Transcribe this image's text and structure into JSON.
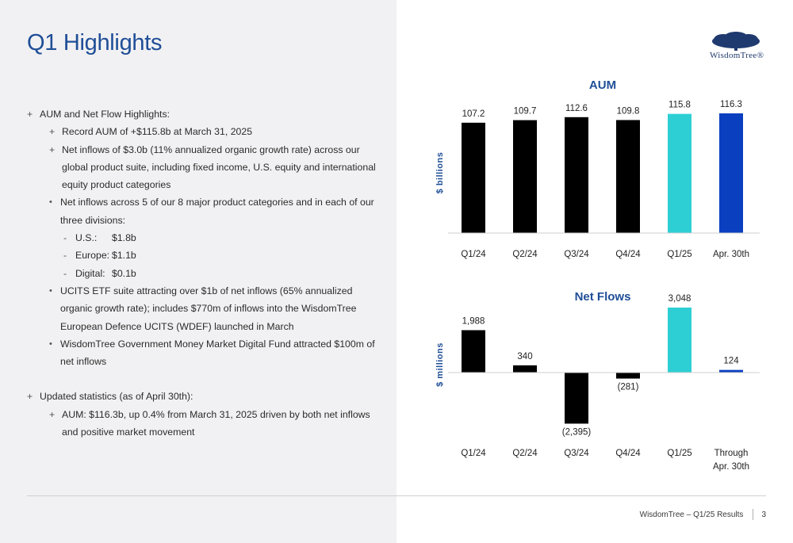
{
  "page": {
    "title": "Q1 Highlights",
    "logo_text": "WisdomTree®",
    "footer_text": "WisdomTree – Q1/25 Results",
    "page_number": "3"
  },
  "bullets": {
    "b1": "AUM and Net Flow Highlights:",
    "b1_1": "Record AUM of +$115.8b at March 31, 2025",
    "b1_2": "Net inflows of $3.0b (11% annualized organic growth rate) across our global product suite, including fixed income, U.S. equity and international equity product categories",
    "b1_2_1": "Net inflows across 5 of our 8 major product categories and in each of our three divisions:",
    "us_k": "U.S.:",
    "us_v": "$1.8b",
    "eu_k": "Europe:",
    "eu_v": "$1.1b",
    "dg_k": "Digital:",
    "dg_v": "$0.1b",
    "b1_2_2": "UCITS ETF suite attracting over $1b of net inflows (65% annualized organic growth rate); includes $770m of inflows into the WisdomTree European Defence UCITS (WDEF) launched in March",
    "b1_2_3": "WisdomTree Government Money Market Digital Fund attracted $100m of net inflows",
    "b2": "Updated statistics (as of April 30th):",
    "b2_1": "AUM:  $116.3b, up 0.4% from March 31, 2025 driven by both net inflows and positive market movement"
  },
  "chart_data": [
    {
      "type": "bar",
      "title": "AUM",
      "ylabel": "$ billions",
      "categories": [
        "Q1/24",
        "Q2/24",
        "Q3/24",
        "Q4/24",
        "Q1/25",
        "Apr. 30th"
      ],
      "values": [
        107.2,
        109.7,
        112.6,
        109.8,
        115.8,
        116.3
      ],
      "labels": [
        "107.2",
        "109.7",
        "112.6",
        "109.8",
        "115.8",
        "116.3"
      ],
      "colors": [
        "#000000",
        "#000000",
        "#000000",
        "#000000",
        "#2ecfd4",
        "#0a3fbf"
      ],
      "ylim": [
        0,
        116.3
      ]
    },
    {
      "type": "bar",
      "title": "Net Flows",
      "ylabel": "$ millions",
      "categories": [
        "Q1/24",
        "Q2/24",
        "Q3/24",
        "Q4/24",
        "Q1/25",
        "Through Apr. 30th"
      ],
      "values": [
        1988,
        340,
        -2395,
        -281,
        3048,
        124
      ],
      "labels": [
        "1,988",
        "340",
        "(2,395)",
        "(281)",
        "3,048",
        "124"
      ],
      "colors": [
        "#000000",
        "#000000",
        "#000000",
        "#000000",
        "#2ecfd4",
        "#0a3fbf"
      ],
      "ylim": [
        -2395,
        3048
      ]
    }
  ],
  "colors": {
    "title": "#1f4e97",
    "axis_title": "#1f4e97",
    "teal": "#2ecfd4",
    "blue": "#0a3fbf"
  }
}
